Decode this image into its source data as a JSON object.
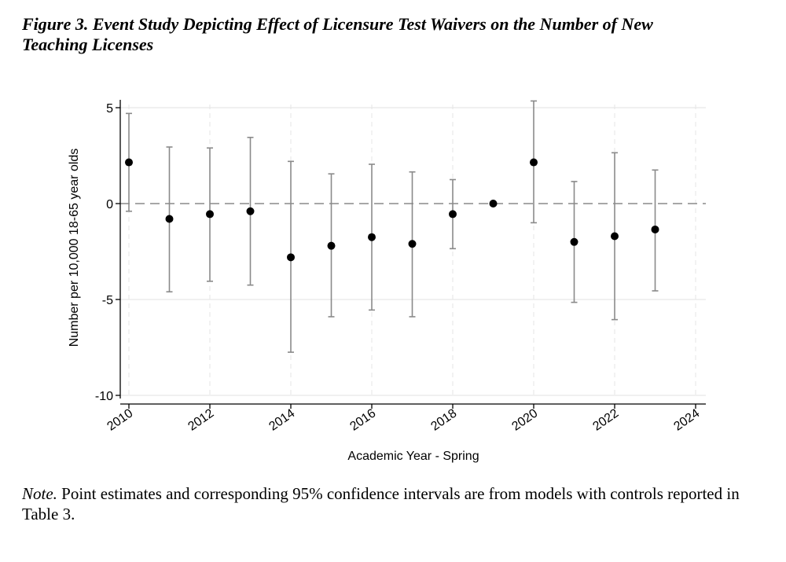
{
  "figure": {
    "title_line1": "Figure 3. Event Study Depicting Effect of Licensure Test Waivers on the Number of New",
    "title_line2": "Teaching Licenses",
    "note_label": "Note.",
    "note_text": " Point estimates and corresponding 95% confidence intervals are from models with controls reported in Table 3."
  },
  "colors": {
    "point": "#000000",
    "ci": "#8a8a8a",
    "grid": "#e6e6e6",
    "zero_line": "#8a8a8a",
    "axis": "#000000"
  },
  "chart_data": {
    "type": "scatter",
    "title": "",
    "xlabel": "Academic Year - Spring",
    "ylabel": "Number per 10,000 18-65 year olds",
    "xlim": [
      2010,
      2024
    ],
    "ylim": [
      -10,
      5
    ],
    "xticks": [
      2010,
      2012,
      2014,
      2016,
      2018,
      2020,
      2022,
      2024
    ],
    "yticks": [
      5,
      0,
      -5,
      -10
    ],
    "ytick_labels": [
      "5",
      "0",
      "-5",
      "-10"
    ],
    "grid": true,
    "reference_line_y": 0,
    "series": [
      {
        "name": "Point estimate with 95% CI",
        "points": [
          {
            "x": 2010,
            "y": 2.15,
            "lo": -0.4,
            "hi": 4.7
          },
          {
            "x": 2011,
            "y": -0.8,
            "lo": -4.6,
            "hi": 2.95
          },
          {
            "x": 2012,
            "y": -0.55,
            "lo": -4.05,
            "hi": 2.9
          },
          {
            "x": 2013,
            "y": -0.4,
            "lo": -4.25,
            "hi": 3.45
          },
          {
            "x": 2014,
            "y": -2.8,
            "lo": -7.75,
            "hi": 2.2
          },
          {
            "x": 2015,
            "y": -2.2,
            "lo": -5.9,
            "hi": 1.55
          },
          {
            "x": 2016,
            "y": -1.75,
            "lo": -5.55,
            "hi": 2.05
          },
          {
            "x": 2017,
            "y": -2.1,
            "lo": -5.9,
            "hi": 1.65
          },
          {
            "x": 2018,
            "y": -0.55,
            "lo": -2.35,
            "hi": 1.25
          },
          {
            "x": 2019,
            "y": 0.0,
            "lo": 0.0,
            "hi": 0.0
          },
          {
            "x": 2020,
            "y": 2.15,
            "lo": -1.0,
            "hi": 5.35
          },
          {
            "x": 2021,
            "y": -2.0,
            "lo": -5.15,
            "hi": 1.15
          },
          {
            "x": 2022,
            "y": -1.7,
            "lo": -6.05,
            "hi": 2.65
          },
          {
            "x": 2023,
            "y": -1.35,
            "lo": -4.55,
            "hi": 1.75
          }
        ]
      }
    ]
  }
}
